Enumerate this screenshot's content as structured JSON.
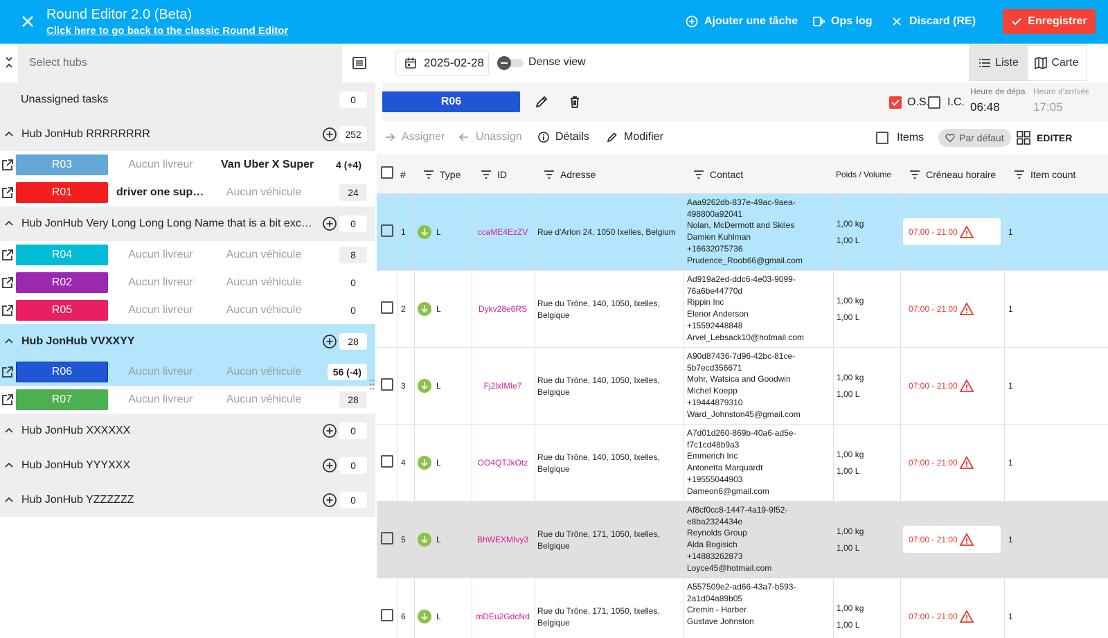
{
  "header": {
    "title": "Round Editor 2.0 (Beta)",
    "back_link": "Click here to go back to the classic Round Editor",
    "add_task": "Ajouter une tâche",
    "ops_log": "Ops log",
    "discard": "Discard (RE)",
    "save": "Enregistrer",
    "colors": {
      "bar": "#03a9f4",
      "save": "#f44336"
    }
  },
  "sidebar": {
    "search_placeholder": "Select hubs",
    "unassigned": {
      "label": "Unassigned tasks",
      "count": "0"
    },
    "hubs": [
      {
        "name": "Hub JonHub RRRRRRRR",
        "count": "252",
        "rounds": [
          {
            "name": "R03",
            "color": "#64a8d6",
            "driver": "Aucun livreur",
            "vehicle": "Van Uber X Super",
            "count": "4 (+4)"
          },
          {
            "name": "R01",
            "color": "#f21d1d",
            "driver": "driver one super...",
            "vehicle": "Aucun véhicule",
            "count": "24"
          }
        ]
      },
      {
        "name": "Hub JonHub Very Long Long Long Name that is a bit exce...",
        "count": "0",
        "rounds": [
          {
            "name": "R04",
            "color": "#00bcd4",
            "driver": "Aucun livreur",
            "vehicle": "Aucun véhicule",
            "count": "8"
          },
          {
            "name": "R02",
            "color": "#9c27b0",
            "driver": "Aucun livreur",
            "vehicle": "Aucun véhicule",
            "count": "0"
          },
          {
            "name": "R05",
            "color": "#e91e63",
            "driver": "Aucun livreur",
            "vehicle": "Aucun véhicule",
            "count": "0"
          }
        ]
      },
      {
        "name": "Hub JonHub VVXXYY",
        "count": "28",
        "rounds": [
          {
            "name": "R06",
            "color": "#1e56d6",
            "driver": "Aucun livreur",
            "vehicle": "Aucun véhicule",
            "count": "56 (-4)"
          },
          {
            "name": "R07",
            "color": "#4caf50",
            "driver": "Aucun livreur",
            "vehicle": "Aucun véhicule",
            "count": "28"
          }
        ]
      },
      {
        "name": "Hub JonHub XXXXXX",
        "count": "0",
        "rounds": []
      },
      {
        "name": "Hub JonHub YYYXXX",
        "count": "0",
        "rounds": []
      },
      {
        "name": "Hub JonHub YZZZZZZ",
        "count": "0",
        "rounds": []
      }
    ]
  },
  "toolbar": {
    "date": "2025-02-28",
    "dense_view": "Dense view",
    "view_list": "Liste",
    "view_map": "Carte",
    "selected_round": "R06",
    "os_label": "O.S.",
    "os_checked": true,
    "ic_label": "I.C.",
    "departure_label": "Heure de départ",
    "departure_time": "06:48",
    "arrival_label": "Heure d'arrivée",
    "arrival_time": "17:05",
    "assign": "Assigner",
    "unassign": "Unassign",
    "details": "Détails",
    "modify": "Modifier",
    "items": "Items",
    "default": "Par défaut",
    "edit": "EDITER"
  },
  "table": {
    "columns": [
      "#",
      "Type",
      "ID",
      "Adresse",
      "Contact",
      "Poids / Volume",
      "Créneau horaire",
      "Item count"
    ],
    "rows": [
      {
        "n": "1",
        "type": "L",
        "id": "ccaME4EzZV",
        "address": "Rue d'Arlon 24,  1050 Ixelles,  Belgium",
        "contact": [
          "Aaa9262db-837e-49ac-9aea-",
          "498800a92041",
          "Nolan, McDermott and Skiles",
          "Damien Kuhlman",
          "+16632075736",
          "Prudence_Roob66@gmail.com"
        ],
        "weight": "1,00 kg",
        "volume": "1,00 L",
        "slot": "07:00 - 21:00",
        "items": "1"
      },
      {
        "n": "2",
        "type": "L",
        "id": "Dykv28e6RS",
        "address": "Rue du Trône, 140, 1050, Ixelles, Belgique",
        "contact": [
          "Ad919a2ed-ddc6-4e03-9099-",
          "76a6be44770d",
          "Rippin Inc",
          "Elenor Anderson",
          "+15592448848",
          "Arvel_Lebsack10@hotmail.com"
        ],
        "weight": "1,00 kg",
        "volume": "1,00 L",
        "slot": "07:00 - 21:00",
        "items": "1"
      },
      {
        "n": "3",
        "type": "L",
        "id": "Fj2lxIMle7",
        "address": "Rue du Trône, 140, 1050, Ixelles, Belgique",
        "contact": [
          "A90d87436-7d96-42bc-81ce-",
          "5b7ecd356671",
          "Mohr, Watsica and Goodwin",
          "Michel Koepp",
          "+19444879310",
          "Ward_Johnston45@gmail.com"
        ],
        "weight": "1,00 kg",
        "volume": "1,00 L",
        "slot": "07:00 - 21:00",
        "items": "1"
      },
      {
        "n": "4",
        "type": "L",
        "id": "OO4QTJkOtz",
        "address": "Rue du Trône, 140, 1050, Ixelles, Belgique",
        "contact": [
          "A7d01d260-869b-40a6-ad5e-",
          "f7c1cd48b9a3",
          "Emmerich Inc",
          "Antonetta Marquardt",
          "+19555044903",
          "Dameon6@gmail.com"
        ],
        "weight": "1,00 kg",
        "volume": "1,00 L",
        "slot": "07:00 - 21:00",
        "items": "1"
      },
      {
        "n": "5",
        "type": "L",
        "id": "BhWEXMIvy3",
        "address": "Rue du Trône, 171, 1050, Ixelles, Belgique",
        "contact": [
          "Af8cf0cc8-1447-4a19-9f52-",
          "e8ba2324434e",
          "Reynolds Group",
          "Alda Bogisich",
          "+14883262873",
          "Loyce45@hotmail.com"
        ],
        "weight": "1,00 kg",
        "volume": "1,00 L",
        "slot": "07:00 - 21:00",
        "items": "1"
      },
      {
        "n": "6",
        "type": "L",
        "id": "mDEu2GdcNd",
        "address": "Rue du Trône, 171, 1050, Ixelles, Belgique",
        "contact": [
          "A557509e2-ad66-43a7-b593-",
          "2a1d04a89b05",
          "Cremin - Harber",
          "Gustave Johnston"
        ],
        "weight": "1,00 kg",
        "volume": "1,00 L",
        "slot": "07:00 - 21:00",
        "items": "1"
      }
    ]
  }
}
